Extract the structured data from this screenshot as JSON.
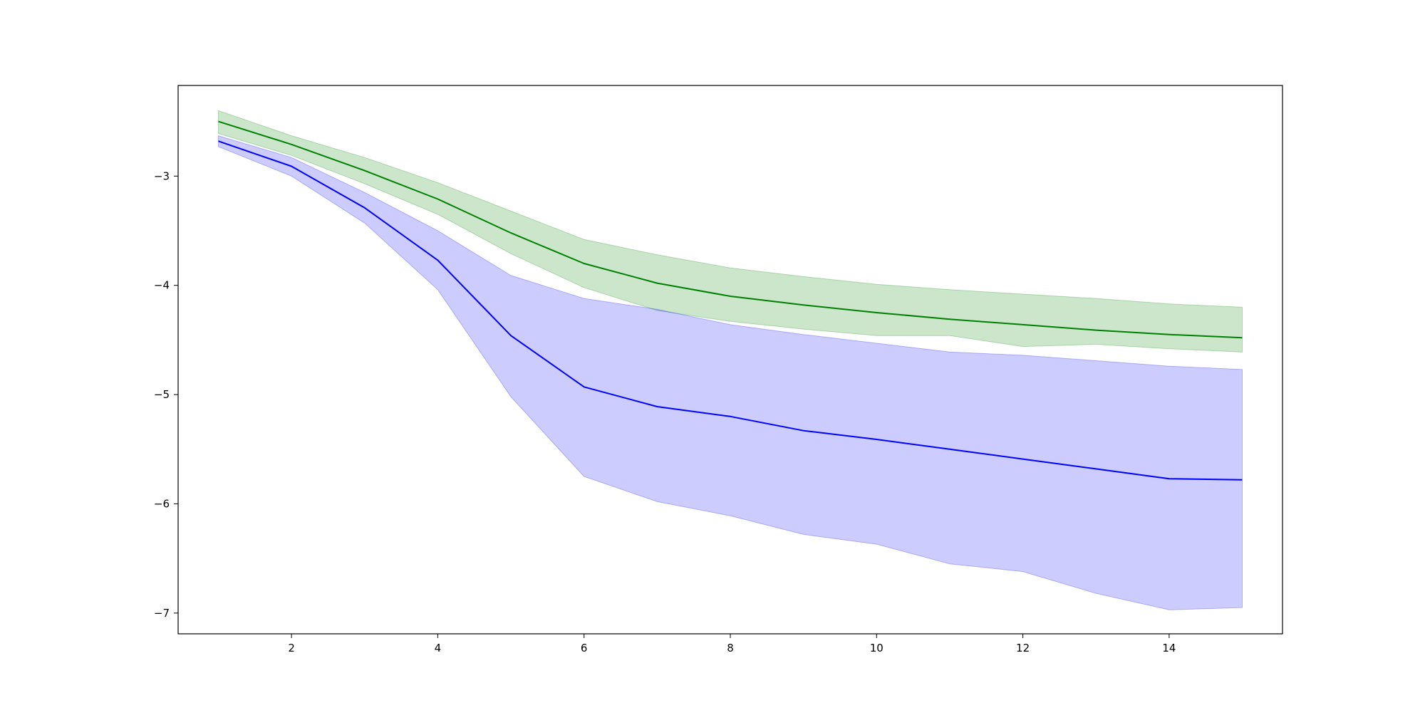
{
  "chart_data": {
    "type": "line",
    "title": "",
    "xlabel": "",
    "ylabel": "",
    "xlim": [
      0.45,
      15.55
    ],
    "ylim": [
      -7.19,
      -2.17
    ],
    "xticks": [
      2,
      4,
      6,
      8,
      10,
      12,
      14
    ],
    "yticks": [
      -3,
      -4,
      -5,
      -6,
      -7
    ],
    "xtick_labels": [
      "2",
      "4",
      "6",
      "8",
      "10",
      "12",
      "14"
    ],
    "ytick_labels": [
      "−3",
      "−4",
      "−5",
      "−6",
      "−7"
    ],
    "grid": false,
    "legend": "none",
    "x": [
      1,
      2,
      3,
      4,
      5,
      6,
      7,
      8,
      9,
      10,
      11,
      12,
      13,
      14,
      15
    ],
    "series": [
      {
        "color": "#008000",
        "band_color": "#008000",
        "band_opacity": 0.2,
        "values": [
          -2.5,
          -2.71,
          -2.95,
          -3.21,
          -3.52,
          -3.8,
          -3.98,
          -4.1,
          -4.18,
          -4.25,
          -4.31,
          -4.36,
          -4.41,
          -4.45,
          -4.48
        ],
        "upper": [
          -2.4,
          -2.63,
          -2.83,
          -3.06,
          -3.32,
          -3.58,
          -3.72,
          -3.84,
          -3.92,
          -3.99,
          -4.04,
          -4.08,
          -4.12,
          -4.17,
          -4.2
        ],
        "lower": [
          -2.61,
          -2.81,
          -3.07,
          -3.35,
          -3.71,
          -4.02,
          -4.23,
          -4.33,
          -4.4,
          -4.46,
          -4.46,
          -4.56,
          -4.54,
          -4.58,
          -4.61
        ]
      },
      {
        "color": "#0000ff",
        "band_color": "#0000ff",
        "band_opacity": 0.2,
        "values": [
          -2.68,
          -2.91,
          -3.29,
          -3.77,
          -4.46,
          -4.93,
          -5.11,
          -5.2,
          -5.33,
          -5.41,
          -5.5,
          -5.59,
          -5.68,
          -5.77,
          -5.78
        ],
        "upper": [
          -2.63,
          -2.83,
          -3.15,
          -3.5,
          -3.91,
          -4.12,
          -4.22,
          -4.36,
          -4.45,
          -4.53,
          -4.61,
          -4.64,
          -4.69,
          -4.74,
          -4.77
        ],
        "lower": [
          -2.73,
          -3.0,
          -3.43,
          -4.04,
          -5.02,
          -5.75,
          -5.98,
          -6.11,
          -6.28,
          -6.37,
          -6.55,
          -6.62,
          -6.82,
          -6.97,
          -6.95
        ]
      }
    ]
  }
}
